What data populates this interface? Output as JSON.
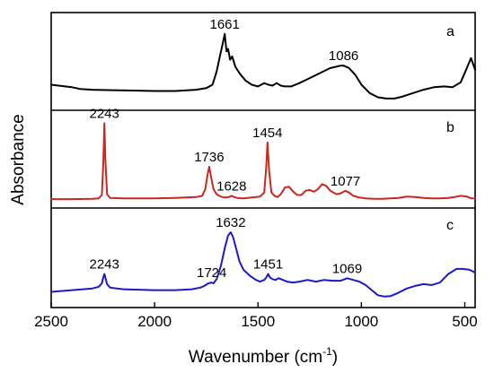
{
  "chart_data": {
    "type": "line",
    "xlabel": "Wavenumber (cm",
    "xlabel_sup": "-1",
    "xlabel_close": ")",
    "ylabel": "Absorbance",
    "xlim": [
      2500,
      450
    ],
    "x_reversed": true,
    "x_ticks": [
      "2500",
      "2000",
      "1500",
      "1000",
      "500"
    ],
    "x_tick_values": [
      2500,
      2000,
      1500,
      1000,
      500
    ],
    "y_ticks_shown": false,
    "panels": [
      {
        "name": "a",
        "color": "#000000",
        "ylim": [
          0,
          1
        ],
        "x": [
          2500,
          2400,
          2360,
          2300,
          2200,
          2100,
          2000,
          1900,
          1800,
          1750,
          1720,
          1700,
          1685,
          1670,
          1661,
          1652,
          1645,
          1635,
          1625,
          1610,
          1590,
          1560,
          1530,
          1500,
          1470,
          1450,
          1430,
          1410,
          1390,
          1370,
          1340,
          1300,
          1250,
          1200,
          1150,
          1100,
          1086,
          1060,
          1030,
          1000,
          960,
          920,
          880,
          840,
          800,
          750,
          700,
          650,
          600,
          560,
          520,
          490,
          470,
          450
        ],
        "y": [
          0.22,
          0.19,
          0.17,
          0.16,
          0.155,
          0.15,
          0.145,
          0.145,
          0.16,
          0.18,
          0.22,
          0.38,
          0.55,
          0.72,
          0.83,
          0.62,
          0.65,
          0.52,
          0.56,
          0.44,
          0.36,
          0.27,
          0.22,
          0.2,
          0.24,
          0.22,
          0.21,
          0.24,
          0.21,
          0.2,
          0.2,
          0.24,
          0.3,
          0.36,
          0.42,
          0.45,
          0.45,
          0.42,
          0.34,
          0.22,
          0.12,
          0.07,
          0.055,
          0.055,
          0.08,
          0.12,
          0.16,
          0.19,
          0.2,
          0.19,
          0.25,
          0.42,
          0.54,
          0.4
        ],
        "peaks": [
          {
            "label": "1661",
            "x": 1661,
            "y": 0.83
          },
          {
            "label": "1086",
            "x": 1086,
            "y": 0.45
          }
        ]
      },
      {
        "name": "b",
        "color": "#c8281e",
        "ylim": [
          0,
          1
        ],
        "x": [
          2500,
          2400,
          2300,
          2270,
          2255,
          2248,
          2243,
          2238,
          2230,
          2215,
          2150,
          2000,
          1900,
          1800,
          1770,
          1755,
          1742,
          1736,
          1728,
          1715,
          1700,
          1680,
          1660,
          1640,
          1628,
          1615,
          1600,
          1570,
          1530,
          1490,
          1470,
          1460,
          1454,
          1446,
          1435,
          1420,
          1405,
          1390,
          1370,
          1350,
          1330,
          1310,
          1290,
          1270,
          1250,
          1230,
          1210,
          1190,
          1170,
          1150,
          1120,
          1100,
          1077,
          1060,
          1040,
          1010,
          980,
          940,
          900,
          860,
          820,
          780,
          740,
          700,
          660,
          620,
          580,
          550,
          520,
          490,
          470,
          450
        ],
        "y": [
          0.02,
          0.02,
          0.025,
          0.03,
          0.07,
          0.45,
          0.93,
          0.5,
          0.08,
          0.035,
          0.03,
          0.03,
          0.035,
          0.045,
          0.06,
          0.14,
          0.34,
          0.41,
          0.3,
          0.14,
          0.08,
          0.05,
          0.04,
          0.045,
          0.06,
          0.045,
          0.035,
          0.03,
          0.04,
          0.05,
          0.1,
          0.42,
          0.7,
          0.35,
          0.1,
          0.06,
          0.045,
          0.08,
          0.16,
          0.17,
          0.11,
          0.07,
          0.07,
          0.12,
          0.13,
          0.11,
          0.14,
          0.2,
          0.18,
          0.12,
          0.08,
          0.09,
          0.12,
          0.1,
          0.06,
          0.04,
          0.03,
          0.025,
          0.025,
          0.03,
          0.035,
          0.05,
          0.045,
          0.035,
          0.03,
          0.03,
          0.035,
          0.045,
          0.06,
          0.05,
          0.03,
          0.03
        ],
        "peaks": [
          {
            "label": "2243",
            "x": 2243,
            "y": 0.93
          },
          {
            "label": "1736",
            "x": 1736,
            "y": 0.41
          },
          {
            "label": "1628",
            "x": 1628,
            "y": 0.06
          },
          {
            "label": "1454",
            "x": 1454,
            "y": 0.7
          },
          {
            "label": "1077",
            "x": 1077,
            "y": 0.12
          }
        ]
      },
      {
        "name": "c",
        "color": "#1a1acc",
        "ylim": [
          0,
          1
        ],
        "x": [
          2500,
          2400,
          2300,
          2270,
          2255,
          2248,
          2243,
          2238,
          2230,
          2215,
          2150,
          2000,
          1900,
          1820,
          1780,
          1760,
          1740,
          1724,
          1715,
          1700,
          1680,
          1660,
          1645,
          1632,
          1620,
          1605,
          1590,
          1570,
          1540,
          1510,
          1490,
          1470,
          1460,
          1451,
          1442,
          1430,
          1415,
          1400,
          1380,
          1360,
          1330,
          1300,
          1260,
          1220,
          1180,
          1140,
          1100,
          1069,
          1040,
          1010,
          980,
          950,
          920,
          890,
          860,
          820,
          780,
          740,
          700,
          660,
          620,
          580,
          540,
          510,
          480,
          460,
          450
        ],
        "y": [
          0.1,
          0.12,
          0.14,
          0.16,
          0.2,
          0.27,
          0.31,
          0.27,
          0.19,
          0.15,
          0.13,
          0.12,
          0.12,
          0.13,
          0.15,
          0.17,
          0.2,
          0.21,
          0.2,
          0.25,
          0.4,
          0.62,
          0.76,
          0.8,
          0.74,
          0.6,
          0.46,
          0.36,
          0.29,
          0.24,
          0.22,
          0.24,
          0.27,
          0.31,
          0.27,
          0.25,
          0.24,
          0.26,
          0.24,
          0.22,
          0.21,
          0.22,
          0.24,
          0.22,
          0.24,
          0.23,
          0.23,
          0.26,
          0.24,
          0.22,
          0.18,
          0.12,
          0.06,
          0.045,
          0.05,
          0.09,
          0.14,
          0.17,
          0.19,
          0.18,
          0.21,
          0.31,
          0.37,
          0.37,
          0.36,
          0.34,
          0.32
        ],
        "peaks": [
          {
            "label": "2243",
            "x": 2243,
            "y": 0.31
          },
          {
            "label": "1724",
            "x": 1724,
            "y": 0.21
          },
          {
            "label": "1632",
            "x": 1632,
            "y": 0.8
          },
          {
            "label": "1451",
            "x": 1451,
            "y": 0.31
          },
          {
            "label": "1069",
            "x": 1069,
            "y": 0.26
          }
        ]
      }
    ]
  }
}
